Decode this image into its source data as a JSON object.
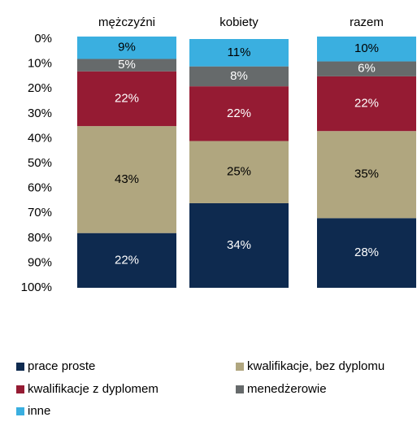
{
  "chart_data": {
    "type": "stacked_bar",
    "inverted": true,
    "categories": [
      "mężczyźni",
      "kobiety",
      "razem"
    ],
    "series": [
      {
        "name": "prace proste",
        "color": "#0e2a4f",
        "values": [
          22,
          34,
          28
        ],
        "value_labels": [
          "22%",
          "34%",
          "28%"
        ]
      },
      {
        "name": "kwalifikacje, bez dyplomu",
        "color": "#b0a67f",
        "values": [
          43,
          25,
          35
        ],
        "value_labels": [
          "43%",
          "25%",
          "35%"
        ]
      },
      {
        "name": "kwalifikacje z dyplomem",
        "color": "#951b33",
        "values": [
          22,
          22,
          22
        ],
        "value_labels": [
          "22%",
          "22%",
          "22%"
        ]
      },
      {
        "name": "menedżerowie",
        "color": "#666a6b",
        "values": [
          5,
          8,
          6
        ],
        "value_labels": [
          "5%",
          "8%",
          "6%"
        ]
      },
      {
        "name": "inne",
        "color": "#3aafe0",
        "values": [
          9,
          11,
          10
        ],
        "value_labels": [
          "9%",
          "11%",
          "10%"
        ]
      }
    ],
    "ylim": [
      0,
      100
    ],
    "yticks": [
      {
        "value": 0,
        "label": "0%"
      },
      {
        "value": 10,
        "label": "10%"
      },
      {
        "value": 20,
        "label": "20%"
      },
      {
        "value": 30,
        "label": "30%"
      },
      {
        "value": 40,
        "label": "40%"
      },
      {
        "value": 50,
        "label": "50%"
      },
      {
        "value": 60,
        "label": "60%"
      },
      {
        "value": 70,
        "label": "70%"
      },
      {
        "value": 80,
        "label": "80%"
      },
      {
        "value": 90,
        "label": "90%"
      },
      {
        "value": 100,
        "label": "100%"
      }
    ]
  }
}
